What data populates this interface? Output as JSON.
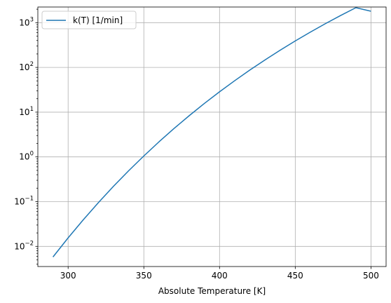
{
  "chart_data": {
    "type": "line",
    "xlabel": "Absolute Temperature [K]",
    "ylabel": "",
    "title": "",
    "xlim": [
      280,
      510
    ],
    "ylim_log10": [
      -2.45,
      3.35
    ],
    "y_scale": "log",
    "grid": true,
    "legend_position": "top-left",
    "x_ticks": [
      300,
      350,
      400,
      450,
      500
    ],
    "y_ticks": [
      {
        "base": "10",
        "exp": "−2",
        "log10": -2
      },
      {
        "base": "10",
        "exp": "−1",
        "log10": -1
      },
      {
        "base": "10",
        "exp": "0",
        "log10": 0
      },
      {
        "base": "10",
        "exp": "1",
        "log10": 1
      },
      {
        "base": "10",
        "exp": "2",
        "log10": 2
      },
      {
        "base": "10",
        "exp": "3",
        "log10": 3
      }
    ],
    "series": [
      {
        "name": "k(T) [1/min]",
        "color": "#1f77b4",
        "x": [
          290,
          300,
          310,
          320,
          330,
          340,
          350,
          360,
          370,
          380,
          390,
          400,
          410,
          420,
          430,
          440,
          450,
          460,
          470,
          480,
          490,
          500
        ],
        "y": [
          0.0058,
          0.0155,
          0.0393,
          0.0953,
          0.221,
          0.492,
          1.05,
          2.17,
          4.33,
          8.36,
          15.7,
          28.5,
          50.5,
          87.2,
          147,
          242,
          390,
          616,
          954,
          1450,
          2160,
          1800
        ]
      }
    ]
  }
}
